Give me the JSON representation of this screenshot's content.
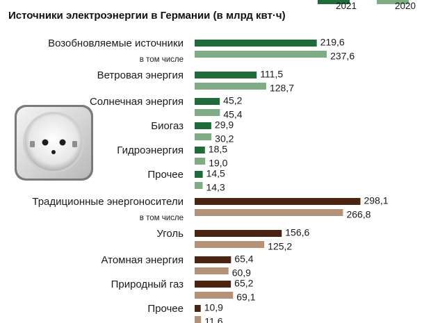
{
  "chart_data": {
    "type": "bar",
    "orientation": "horizontal",
    "title": "Источники электроэнергии в Германии (в млрд квт·ч)",
    "legend": [
      "2021",
      "2020"
    ],
    "legend_placement": "top-right",
    "groups": [
      {
        "name": "renewable",
        "colors": {
          "2021": "#1f6b3a",
          "2020": "#7fac84"
        },
        "items": [
          {
            "label": "Возобновляемые источники",
            "v2021": 219.6,
            "v2020": 237.6,
            "t2021": "219,6",
            "t2020": "237,6",
            "sublabel": "в том числе"
          },
          {
            "label": "Ветровая энергия",
            "v2021": 111.5,
            "v2020": 128.7,
            "t2021": "111,5",
            "t2020": "128,7"
          },
          {
            "label": "Солнечная энергия",
            "v2021": 45.2,
            "v2020": 45.4,
            "t2021": "45,2",
            "t2020": "45,4"
          },
          {
            "label": "Биогаз",
            "v2021": 29.9,
            "v2020": 30.2,
            "t2021": "29,9",
            "t2020": "30,2"
          },
          {
            "label": "Гидроэнергия",
            "v2021": 18.5,
            "v2020": 19.0,
            "t2021": "18,5",
            "t2020": "19,0"
          },
          {
            "label": "Прочее",
            "v2021": 14.5,
            "v2020": 14.3,
            "t2021": "14,5",
            "t2020": "14,3"
          }
        ]
      },
      {
        "name": "conventional",
        "colors": {
          "2021": "#4a2410",
          "2020": "#b39277"
        },
        "items": [
          {
            "label": "Традиционные энергоносители",
            "v2021": 298.1,
            "v2020": 266.8,
            "t2021": "298,1",
            "t2020": "266,8",
            "sublabel": "в том числе"
          },
          {
            "label": "Уголь",
            "v2021": 156.6,
            "v2020": 125.2,
            "t2021": "156,6",
            "t2020": "125,2"
          },
          {
            "label": "Атомная энергия",
            "v2021": 65.4,
            "v2020": 60.9,
            "t2021": "65,4",
            "t2020": "60,9"
          },
          {
            "label": "Природный газ",
            "v2021": 65.2,
            "v2020": 69.1,
            "t2021": "65,2",
            "t2020": "69,1"
          },
          {
            "label": "Прочее",
            "v2021": 10.9,
            "v2020": 11.6,
            "t2021": "10,9",
            "t2020": "11,6"
          }
        ]
      }
    ]
  }
}
